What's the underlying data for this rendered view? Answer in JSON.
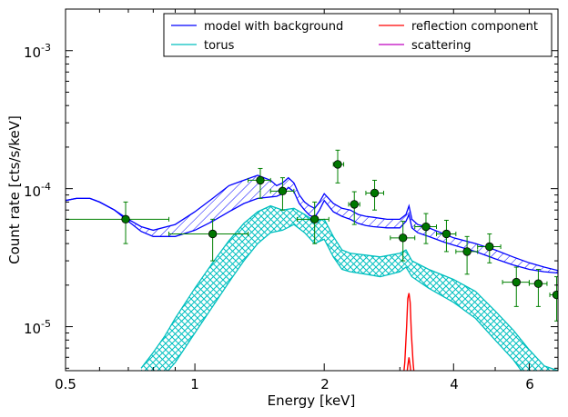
{
  "chart_data": {
    "type": "line",
    "xlabel": "Energy [keV]",
    "ylabel": "Count rate [cts/s/keV]",
    "xscale": "log",
    "yscale": "log",
    "xlim": [
      0.5,
      7.0
    ],
    "ylim": [
      4.8e-06,
      0.002
    ],
    "x_ticks": [
      {
        "value": 0.5,
        "label": "0.5"
      },
      {
        "value": 1,
        "label": "1"
      },
      {
        "value": 2,
        "label": "2"
      },
      {
        "value": 4,
        "label": "4"
      },
      {
        "value": 6,
        "label": "6"
      }
    ],
    "y_ticks": [
      {
        "value": 1e-05,
        "base": "10",
        "exp": "-5"
      },
      {
        "value": 0.0001,
        "base": "10",
        "exp": "-4"
      },
      {
        "value": 0.001,
        "base": "10",
        "exp": "-3"
      }
    ],
    "legend": {
      "placement": "top-right",
      "entries": [
        {
          "label": "model with background",
          "color": "#0000ff"
        },
        {
          "label": "reflection component",
          "color": "#ff0000"
        },
        {
          "label": "torus",
          "color": "#00bfbf"
        },
        {
          "label": "scattering",
          "color": "#bf00bf"
        }
      ]
    },
    "series": [
      {
        "name": "model with background",
        "color": "#0000ff",
        "style": "hatched band",
        "x": [
          0.5,
          0.53,
          0.57,
          0.6,
          0.65,
          0.7,
          0.75,
          0.8,
          0.9,
          1.0,
          1.1,
          1.2,
          1.3,
          1.4,
          1.5,
          1.55,
          1.6,
          1.65,
          1.7,
          1.75,
          1.8,
          1.85,
          1.9,
          1.95,
          2.0,
          2.1,
          2.2,
          2.3,
          2.4,
          2.5,
          2.6,
          2.8,
          3.0,
          3.1,
          3.15,
          3.2,
          3.3,
          3.5,
          3.8,
          4.0,
          4.5,
          5.0,
          5.5,
          6.0,
          6.5,
          7.0
        ],
        "upper": [
          8.2e-05,
          8.5e-05,
          8.5e-05,
          8e-05,
          7e-05,
          6e-05,
          5.3e-05,
          5e-05,
          5.5e-05,
          6.8e-05,
          8.5e-05,
          0.000105,
          0.000115,
          0.000125,
          0.000115,
          0.000105,
          0.00011,
          0.00012,
          0.00011,
          9e-05,
          8e-05,
          7.5e-05,
          7.2e-05,
          8e-05,
          9.2e-05,
          7.8e-05,
          7.2e-05,
          7e-05,
          6.5e-05,
          6.3e-05,
          6.2e-05,
          6e-05,
          6e-05,
          6.5e-05,
          7.5e-05,
          6e-05,
          5.5e-05,
          5.2e-05,
          4.7e-05,
          4.4e-05,
          4e-05,
          3.6e-05,
          3.2e-05,
          2.9e-05,
          2.7e-05,
          2.55e-05
        ],
        "lower": [
          8.2e-05,
          8.5e-05,
          8.5e-05,
          8e-05,
          7e-05,
          5.8e-05,
          4.9e-05,
          4.5e-05,
          4.5e-05,
          5e-05,
          5.8e-05,
          6.8e-05,
          7.8e-05,
          8.5e-05,
          8.7e-05,
          8.8e-05,
          9.2e-05,
          0.000102,
          9.5e-05,
          7.8e-05,
          7e-05,
          6.4e-05,
          6.2e-05,
          7e-05,
          8.2e-05,
          6.8e-05,
          6.3e-05,
          6e-05,
          5.6e-05,
          5.4e-05,
          5.3e-05,
          5.2e-05,
          5.2e-05,
          5.8e-05,
          6.5e-05,
          5.2e-05,
          4.8e-05,
          4.5e-05,
          4.1e-05,
          3.9e-05,
          3.5e-05,
          3.1e-05,
          2.8e-05,
          2.6e-05,
          2.5e-05,
          2.45e-05
        ]
      },
      {
        "name": "torus",
        "color": "#00bfbf",
        "style": "cross-hatched band",
        "x": [
          0.75,
          0.8,
          0.85,
          0.9,
          1.0,
          1.1,
          1.2,
          1.3,
          1.4,
          1.5,
          1.6,
          1.7,
          1.8,
          1.9,
          2.0,
          2.1,
          2.2,
          2.3,
          2.5,
          2.7,
          3.0,
          3.1,
          3.2,
          3.5,
          4.0,
          4.5,
          5.0,
          5.5,
          6.0,
          6.5,
          7.0
        ],
        "upper": [
          5e-06,
          6.5e-06,
          8.5e-06,
          1.15e-05,
          1.9e-05,
          2.9e-05,
          4.2e-05,
          5.6e-05,
          6.8e-05,
          7.5e-05,
          7e-05,
          7.2e-05,
          6.5e-05,
          5.8e-05,
          6e-05,
          4.5e-05,
          3.6e-05,
          3.4e-05,
          3.3e-05,
          3.2e-05,
          3.4e-05,
          3.6e-05,
          3e-05,
          2.6e-05,
          2.2e-05,
          1.8e-05,
          1.3e-05,
          9.5e-06,
          6.8e-06,
          5.2e-06,
          4.8e-06
        ],
        "lower": [
          2.5e-06,
          3.5e-06,
          4.5e-06,
          5.5e-06,
          9e-06,
          1.4e-05,
          2.1e-05,
          3e-05,
          4e-05,
          4.8e-05,
          5e-05,
          5.5e-05,
          4.8e-05,
          4e-05,
          4.3e-05,
          3.2e-05,
          2.6e-05,
          2.5e-05,
          2.4e-05,
          2.3e-05,
          2.5e-05,
          2.7e-05,
          2.3e-05,
          1.9e-05,
          1.5e-05,
          1.15e-05,
          8e-06,
          5.8e-06,
          4e-06,
          3e-06,
          2.5e-06
        ]
      },
      {
        "name": "reflection component",
        "color": "#ff0000",
        "style": "line",
        "x": [
          3.05,
          3.08,
          3.11,
          3.13,
          3.15,
          3.17,
          3.19,
          3.22,
          3.25
        ],
        "y": [
          4e-06,
          5.5e-06,
          1e-05,
          1.6e-05,
          1.75e-05,
          1.5e-05,
          9e-06,
          5.5e-06,
          4e-06
        ]
      },
      {
        "name": "reflection component (lower)",
        "color": "#ff0000",
        "style": "line",
        "x": [
          3.1,
          3.13,
          3.15,
          3.17,
          3.2
        ],
        "y": [
          4e-06,
          5.2e-06,
          6e-06,
          5.2e-06,
          4e-06
        ]
      },
      {
        "name": "data",
        "color": "#008000",
        "marker_color": "#007700",
        "style": "points with error bars",
        "points": [
          {
            "x": 0.69,
            "y": 6e-05,
            "xlo": 0.5,
            "xhi": 0.87,
            "ylo": 4e-05,
            "yhi": 8e-05
          },
          {
            "x": 1.1,
            "y": 4.7e-05,
            "xlo": 0.87,
            "xhi": 1.33,
            "ylo": 3e-05,
            "yhi": 6e-05
          },
          {
            "x": 1.42,
            "y": 0.000115,
            "xlo": 1.33,
            "xhi": 1.5,
            "ylo": 8.5e-05,
            "yhi": 0.00014
          },
          {
            "x": 1.6,
            "y": 9.6e-05,
            "xlo": 1.5,
            "xhi": 1.7,
            "ylo": 7e-05,
            "yhi": 0.00012
          },
          {
            "x": 1.9,
            "y": 6e-05,
            "xlo": 1.73,
            "xhi": 2.05,
            "ylo": 4e-05,
            "yhi": 8e-05
          },
          {
            "x": 2.15,
            "y": 0.00015,
            "xlo": 2.1,
            "xhi": 2.22,
            "ylo": 0.00011,
            "yhi": 0.00019
          },
          {
            "x": 2.35,
            "y": 7.7e-05,
            "xlo": 2.28,
            "xhi": 2.42,
            "ylo": 5.5e-05,
            "yhi": 9.5e-05
          },
          {
            "x": 2.62,
            "y": 9.3e-05,
            "xlo": 2.5,
            "xhi": 2.75,
            "ylo": 7e-05,
            "yhi": 0.000115
          },
          {
            "x": 3.05,
            "y": 4.4e-05,
            "xlo": 2.85,
            "xhi": 3.25,
            "ylo": 3e-05,
            "yhi": 5.8e-05
          },
          {
            "x": 3.45,
            "y": 5.3e-05,
            "xlo": 3.25,
            "xhi": 3.65,
            "ylo": 4e-05,
            "yhi": 6.6e-05
          },
          {
            "x": 3.85,
            "y": 4.7e-05,
            "xlo": 3.65,
            "xhi": 4.05,
            "ylo": 3.5e-05,
            "yhi": 5.9e-05
          },
          {
            "x": 4.3,
            "y": 3.5e-05,
            "xlo": 4.05,
            "xhi": 4.55,
            "ylo": 2.4e-05,
            "yhi": 4.5e-05
          },
          {
            "x": 4.85,
            "y": 3.8e-05,
            "xlo": 4.55,
            "xhi": 5.15,
            "ylo": 2.9e-05,
            "yhi": 4.7e-05
          },
          {
            "x": 5.6,
            "y": 2.1e-05,
            "xlo": 5.2,
            "xhi": 6.0,
            "ylo": 1.4e-05,
            "yhi": 2.7e-05
          },
          {
            "x": 6.3,
            "y": 2.05e-05,
            "xlo": 6.0,
            "xhi": 6.6,
            "ylo": 1.4e-05,
            "yhi": 2.6e-05
          },
          {
            "x": 6.95,
            "y": 1.7e-05,
            "xlo": 6.7,
            "xhi": 7.2,
            "ylo": 1.1e-05,
            "yhi": 2.3e-05
          }
        ]
      }
    ]
  }
}
